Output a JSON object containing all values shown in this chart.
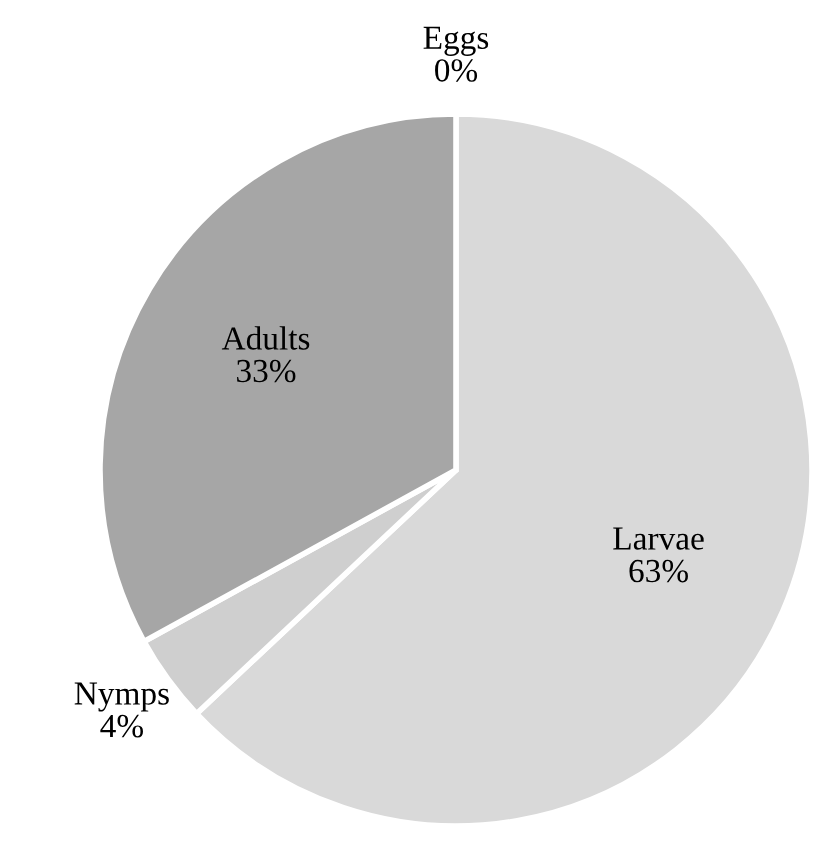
{
  "chart_data": {
    "type": "pie",
    "categories": [
      "Eggs",
      "Larvae",
      "Nymps",
      "Adults"
    ],
    "values": [
      0,
      63,
      4,
      33
    ],
    "value_labels": [
      "0%",
      "63%",
      "4%",
      "33%"
    ],
    "colors": [
      "#bfbfbf",
      "#d9d9d9",
      "#cfcfcf",
      "#a6a6a6"
    ],
    "legend": false
  }
}
